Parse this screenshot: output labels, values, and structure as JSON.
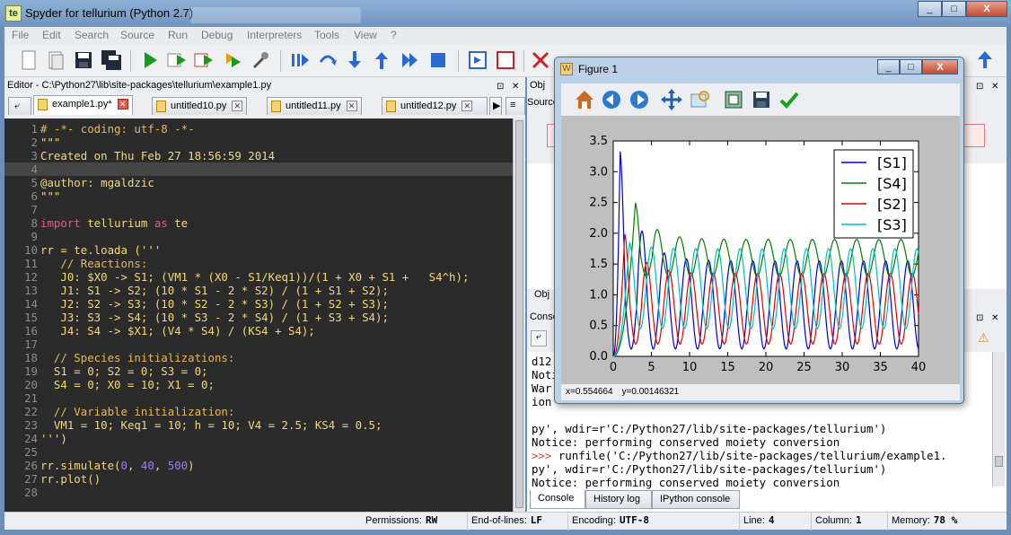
{
  "window": {
    "title": "Spyder for tellurium (Python 2.7)",
    "app_icon_text": "te",
    "controls": [
      "_",
      "□",
      "X"
    ]
  },
  "menu": [
    "File",
    "Edit",
    "Search",
    "Source",
    "Run",
    "Debug",
    "Interpreters",
    "Tools",
    "View",
    "?"
  ],
  "editor": {
    "title": "Editor - C:\\Python27\\lib\\site-packages\\tellurium\\example1.py",
    "tabs": [
      {
        "label": "example1.py*",
        "active": true
      },
      {
        "label": "untitled10.py",
        "active": false
      },
      {
        "label": "untitled11.py",
        "active": false
      },
      {
        "label": "untitled12.py",
        "active": false
      }
    ],
    "lines": [
      {
        "n": "1",
        "text": "# -*- coding: utf-8 -*-"
      },
      {
        "n": "2",
        "text": "\"\"\""
      },
      {
        "n": "3",
        "text": "Created on Thu Feb 27 18:56:59 2014"
      },
      {
        "n": "4",
        "text": ""
      },
      {
        "n": "5",
        "text": "@author: mgaldzic"
      },
      {
        "n": "6",
        "text": "\"\"\""
      },
      {
        "n": "7",
        "text": ""
      },
      {
        "n": "8",
        "text": "import tellurium as te"
      },
      {
        "n": "9",
        "text": ""
      },
      {
        "n": "10",
        "text": "rr = te.loada ('''"
      },
      {
        "n": "11",
        "text": "   // Reactions:"
      },
      {
        "n": "12",
        "text": "   J0: $X0 -> S1; (VM1 * (X0 - S1/Keq1))/(1 + X0 + S1 +   S4^h);"
      },
      {
        "n": "13",
        "text": "   J1: S1 -> S2; (10 * S1 - 2 * S2) / (1 + S1 + S2);"
      },
      {
        "n": "14",
        "text": "   J2: S2 -> S3; (10 * S2 - 2 * S3) / (1 + S2 + S3);"
      },
      {
        "n": "15",
        "text": "   J3: S3 -> S4; (10 * S3 - 2 * S4) / (1 + S3 + S4);"
      },
      {
        "n": "16",
        "text": "   J4: S4 -> $X1; (V4 * S4) / (KS4 + S4);"
      },
      {
        "n": "17",
        "text": ""
      },
      {
        "n": "18",
        "text": "  // Species initializations:"
      },
      {
        "n": "19",
        "text": "  S1 = 0; S2 = 0; S3 = 0;"
      },
      {
        "n": "20",
        "text": "  S4 = 0; X0 = 10; X1 = 0;"
      },
      {
        "n": "21",
        "text": ""
      },
      {
        "n": "22",
        "text": "  // Variable initialization:"
      },
      {
        "n": "23",
        "text": "  VM1 = 10; Keq1 = 10; h = 10; V4 = 2.5; KS4 = 0.5;"
      },
      {
        "n": "24",
        "text": "''')"
      },
      {
        "n": "25",
        "text": ""
      },
      {
        "n": "26",
        "text": "rr.simulate(0, 40, 500)"
      },
      {
        "n": "27",
        "text": "rr.plot()"
      },
      {
        "n": "28",
        "text": ""
      }
    ]
  },
  "object_inspector": {
    "title": "Obj",
    "source_label": "Source",
    "tab_label": "Obj"
  },
  "console": {
    "title": "Conso",
    "lines": [
      {
        "kind": "out",
        "text": "d12"
      },
      {
        "kind": "out",
        "text": "Noti"
      },
      {
        "kind": "out",
        "text": "War                                                     at"
      },
      {
        "kind": "out",
        "text": "ion"
      },
      {
        "kind": "out",
        "text": "                                                         "
      },
      {
        "kind": "out",
        "text": "py', wdir=r'C:/Python27/lib/site-packages/tellurium')"
      },
      {
        "kind": "out",
        "text": "Notice: performing conserved moiety conversion"
      },
      {
        "kind": "prompt",
        "prompt": ">>> ",
        "text": "runfile('C:/Python27/lib/site-packages/tellurium/example1."
      },
      {
        "kind": "out",
        "text": "py', wdir=r'C:/Python27/lib/site-packages/tellurium')"
      },
      {
        "kind": "out",
        "text": "Notice: performing conserved moiety conversion"
      }
    ],
    "bottom_tabs": [
      "Console",
      "History log",
      "IPython console"
    ]
  },
  "statusbar": {
    "permissions_label": "Permissions:",
    "permissions": "RW",
    "eol_label": "End-of-lines:",
    "eol": "LF",
    "encoding_label": "Encoding:",
    "encoding": "UTF-8",
    "line_label": "Line:",
    "line": "4",
    "column_label": "Column:",
    "column": "1",
    "memory_label": "Memory:",
    "memory": "78 %"
  },
  "figure": {
    "title": "Figure 1",
    "status": {
      "x": "x=0.554664",
      "y": "y=0.00146321"
    },
    "tools": [
      "home-icon",
      "back-icon",
      "forward-icon",
      "pan-icon",
      "zoom-icon",
      "subplots-icon",
      "save-icon",
      "check-icon"
    ]
  },
  "chart_data": {
    "type": "line",
    "xlim": [
      0,
      40
    ],
    "ylim": [
      0,
      3.5
    ],
    "xticks": [
      "0",
      "5",
      "10",
      "15",
      "20",
      "25",
      "30",
      "35",
      "40"
    ],
    "yticks": [
      "0.0",
      "0.5",
      "1.0",
      "1.5",
      "2.0",
      "2.5",
      "3.0",
      "3.5"
    ],
    "legend_position": "top-right",
    "series": [
      {
        "name": "[S1]",
        "color": "#0000cc",
        "peaks": [
          [
            0.9,
            3.35
          ],
          [
            3.6,
            1.95
          ],
          [
            6.6,
            1.6
          ],
          [
            9.4,
            1.55
          ]
        ],
        "period": 2.9,
        "steady_max": 1.55,
        "steady_min": 0.12,
        "phase": 0.0
      },
      {
        "name": "[S4]",
        "color": "#007f00",
        "peaks": [
          [
            2.9,
            2.5
          ],
          [
            5.5,
            1.95
          ],
          [
            8.3,
            1.9
          ]
        ],
        "period": 2.9,
        "steady_max": 1.9,
        "steady_min": 1.3,
        "phase": 1.7
      },
      {
        "name": "[S2]",
        "color": "#e00000",
        "peaks": [
          [
            1.5,
            2.0
          ],
          [
            4.4,
            1.55
          ],
          [
            7.3,
            1.4
          ]
        ],
        "period": 2.9,
        "steady_max": 1.35,
        "steady_min": 0.2,
        "phase": 0.55
      },
      {
        "name": "[S3]",
        "color": "#00bfbf",
        "peaks": [
          [
            2.1,
            1.85
          ],
          [
            5.0,
            1.8
          ],
          [
            7.9,
            1.75
          ]
        ],
        "period": 2.9,
        "steady_max": 1.75,
        "steady_min": 0.45,
        "phase": 1.1
      }
    ]
  }
}
